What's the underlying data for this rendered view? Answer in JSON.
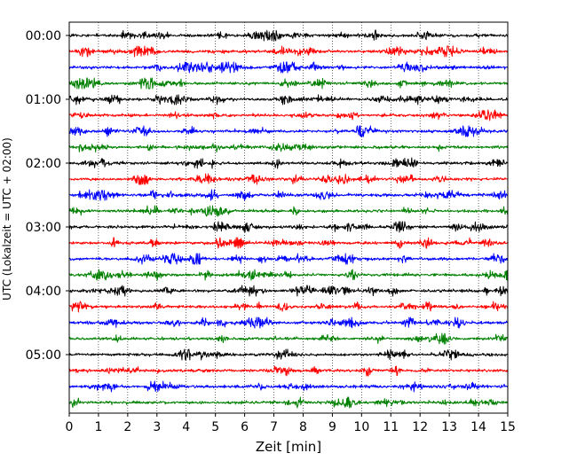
{
  "chart_data": {
    "type": "line",
    "title": "",
    "xlabel": "Zeit  [min]",
    "ylabel": "UTC (Lokalzeit = UTC + 02:00)",
    "xlim": [
      0,
      15
    ],
    "x_ticks": [
      "0",
      "1",
      "2",
      "3",
      "4",
      "5",
      "6",
      "7",
      "8",
      "9",
      "10",
      "11",
      "12",
      "13",
      "14",
      "15"
    ],
    "y_tick_labels": [
      "00:00",
      "01:00",
      "02:00",
      "03:00",
      "04:00",
      "05:00"
    ],
    "grid": "vertical dotted lines at each minute",
    "color_cycle": [
      "#000000",
      "#ff0000",
      "#0000ff",
      "#008000"
    ],
    "series": [
      {
        "start": "00:00",
        "color": "#000000"
      },
      {
        "start": "00:15",
        "color": "#ff0000"
      },
      {
        "start": "00:30",
        "color": "#0000ff"
      },
      {
        "start": "00:45",
        "color": "#008000"
      },
      {
        "start": "01:00",
        "color": "#000000"
      },
      {
        "start": "01:15",
        "color": "#ff0000"
      },
      {
        "start": "01:30",
        "color": "#0000ff"
      },
      {
        "start": "01:45",
        "color": "#008000"
      },
      {
        "start": "02:00",
        "color": "#000000"
      },
      {
        "start": "02:15",
        "color": "#ff0000"
      },
      {
        "start": "02:30",
        "color": "#0000ff"
      },
      {
        "start": "02:45",
        "color": "#008000"
      },
      {
        "start": "03:00",
        "color": "#000000"
      },
      {
        "start": "03:15",
        "color": "#ff0000"
      },
      {
        "start": "03:30",
        "color": "#0000ff"
      },
      {
        "start": "03:45",
        "color": "#008000"
      },
      {
        "start": "04:00",
        "color": "#000000"
      },
      {
        "start": "04:15",
        "color": "#ff0000"
      },
      {
        "start": "04:30",
        "color": "#0000ff"
      },
      {
        "start": "04:45",
        "color": "#008000"
      },
      {
        "start": "05:00",
        "color": "#000000"
      },
      {
        "start": "05:15",
        "color": "#ff0000"
      },
      {
        "start": "05:30",
        "color": "#0000ff"
      },
      {
        "start": "05:45",
        "color": "#008000"
      }
    ]
  }
}
